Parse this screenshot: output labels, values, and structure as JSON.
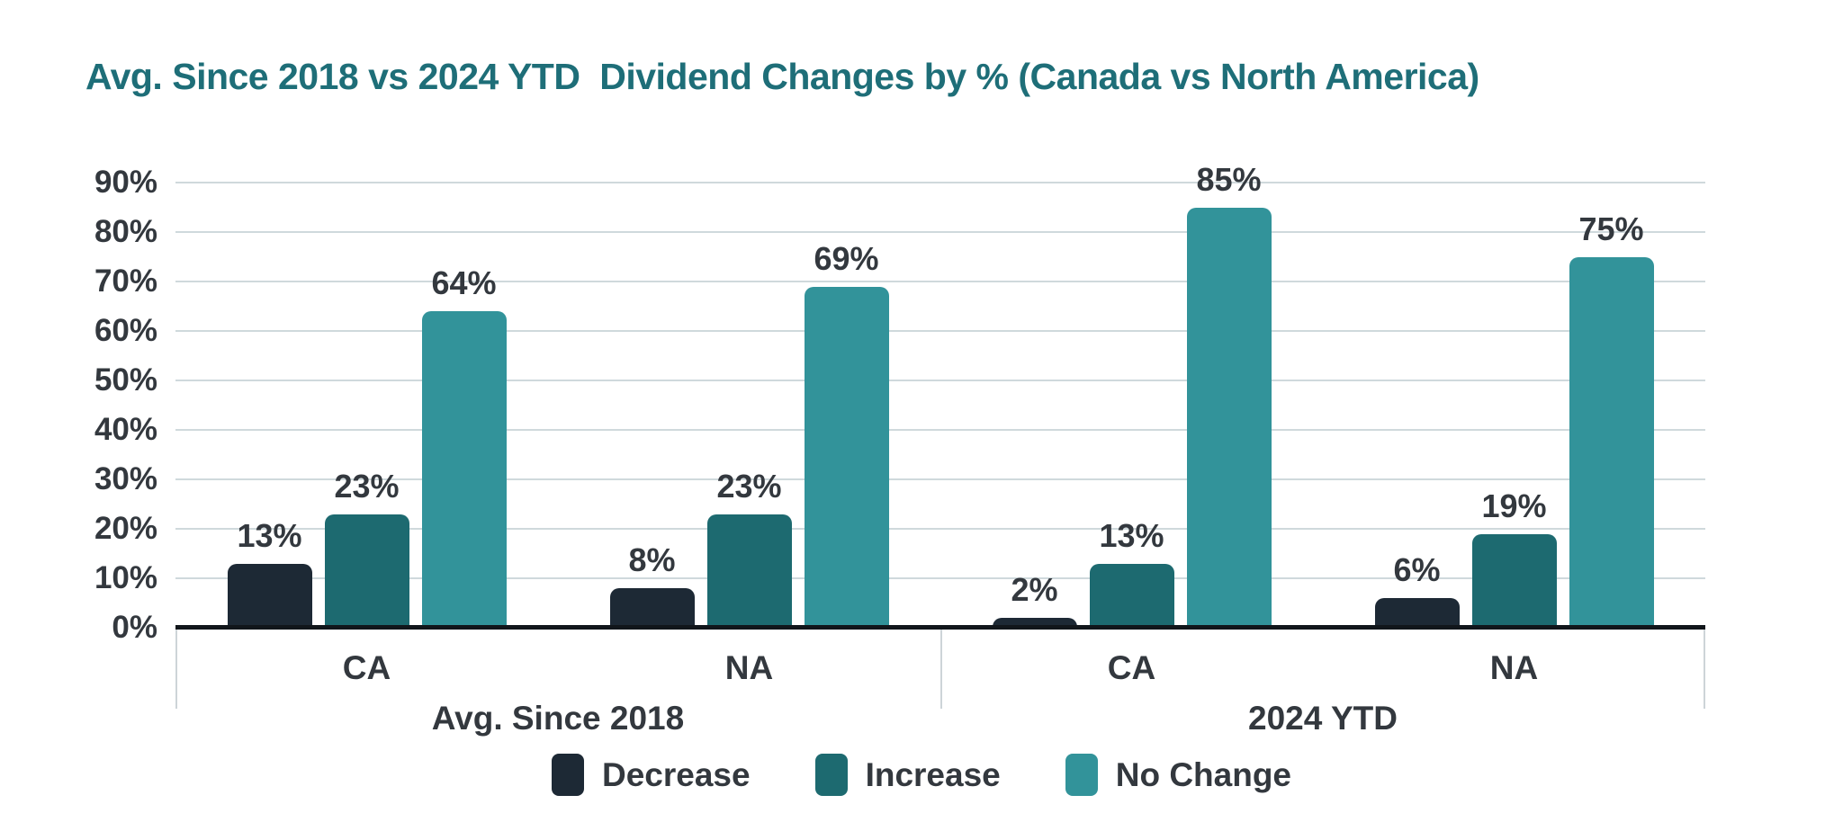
{
  "title": "Avg. Since 2018 vs 2024 YTD  Dividend Changes by % (Canada vs North America)",
  "colors": {
    "title": "#1e6e78",
    "text_dark": "#33383e",
    "gridline": "#cfd9dc",
    "baseline": "#11161b",
    "separator": "#cdd4d8",
    "background": "#ffffff"
  },
  "chart_data": {
    "type": "bar",
    "title": "Avg. Since 2018 vs 2024 YTD  Dividend Changes by % (Canada vs North America)",
    "xlabel": "",
    "ylabel": "",
    "ylim": [
      0,
      90
    ],
    "yticks": [
      0,
      10,
      20,
      30,
      40,
      50,
      60,
      70,
      80,
      90
    ],
    "ytick_format": "{v}%",
    "grid": true,
    "legend_position": "bottom",
    "data_label_format": "{v}%",
    "series": [
      {
        "name": "Decrease",
        "color": "#1d2935"
      },
      {
        "name": "Increase",
        "color": "#1d6a70"
      },
      {
        "name": "No Change",
        "color": "#32939a"
      }
    ],
    "groups": [
      {
        "label": "Avg. Since 2018",
        "clusters": [
          {
            "category": "CA",
            "values": [
              13,
              23,
              64
            ]
          },
          {
            "category": "NA",
            "values": [
              8,
              23,
              69
            ]
          }
        ]
      },
      {
        "label": "2024 YTD",
        "clusters": [
          {
            "category": "CA",
            "values": [
              2,
              13,
              85
            ]
          },
          {
            "category": "NA",
            "values": [
              6,
              19,
              75
            ]
          }
        ]
      }
    ]
  }
}
